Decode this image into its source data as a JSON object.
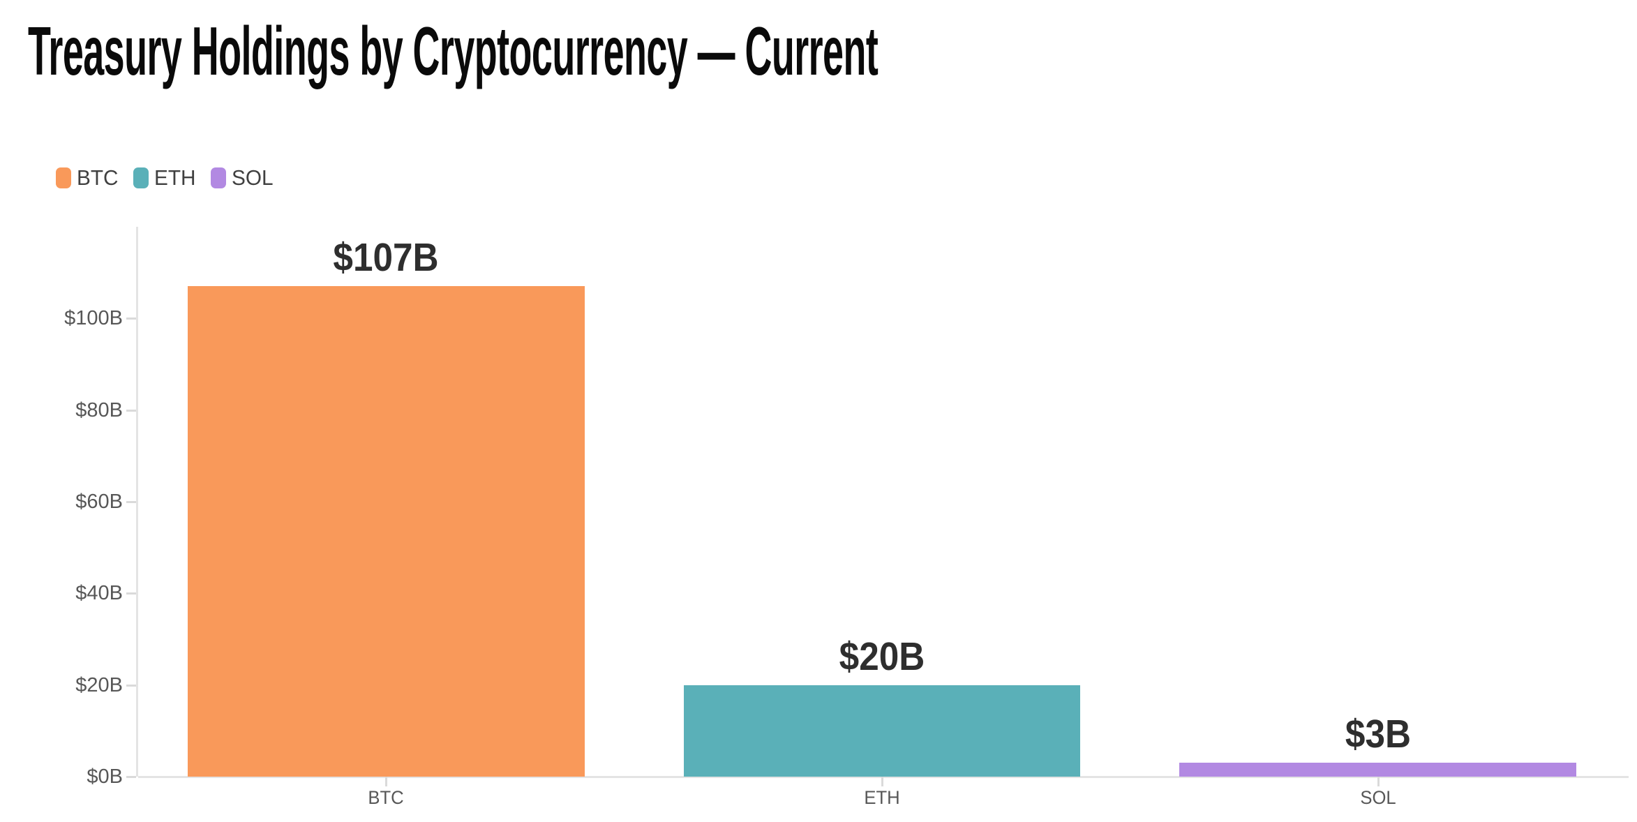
{
  "header": {
    "title": "Treasury Holdings by Cryptocurrency — Current"
  },
  "legend": {
    "items": [
      {
        "label": "BTC",
        "color": "#F9995A"
      },
      {
        "label": "ETH",
        "color": "#5AB0B8"
      },
      {
        "label": "SOL",
        "color": "#B289E2"
      }
    ]
  },
  "chart_data": {
    "type": "bar",
    "title": "Treasury Holdings by Cryptocurrency — Current",
    "categories": [
      "BTC",
      "ETH",
      "SOL"
    ],
    "values": [
      107,
      20,
      3
    ],
    "value_labels": [
      "$107B",
      "$20B",
      "$3B"
    ],
    "bar_colors": [
      "#F9995A",
      "#5AB0B8",
      "#B289E2"
    ],
    "xlabel": "",
    "ylabel": "",
    "ylim": [
      0,
      120
    ],
    "yticks": [
      0,
      20,
      40,
      60,
      80,
      100
    ],
    "ytick_labels": [
      "$0B",
      "$20B",
      "$40B",
      "$60B",
      "$80B",
      "$100B"
    ],
    "grid": false,
    "legend_position": "top-left",
    "legend_entries": [
      "BTC",
      "ETH",
      "SOL"
    ]
  },
  "colors": {
    "background": "#ffffff",
    "title_text": "#0a0a0a",
    "value_label_text": "#2e2e2e",
    "axis_label_text": "#575757",
    "legend_label_text": "#404040",
    "axis_line": "#e4e4e4",
    "tick_line": "#dadada"
  }
}
